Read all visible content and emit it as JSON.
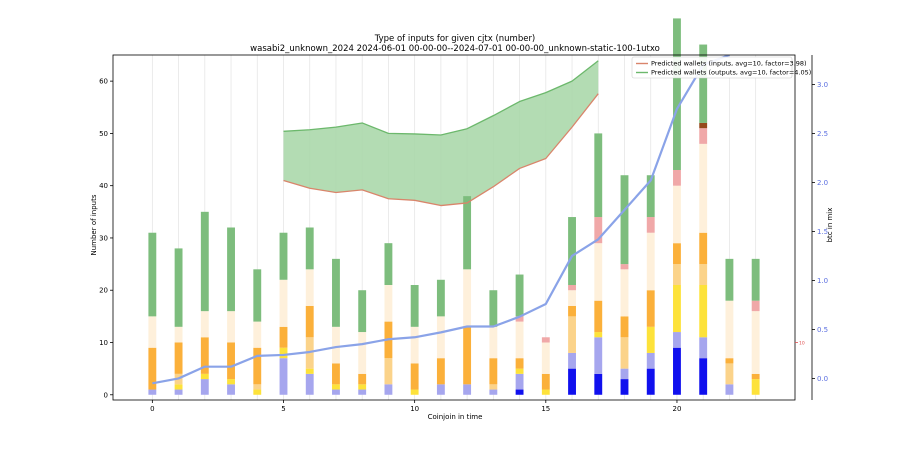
{
  "chart_data": {
    "type": "bar",
    "title": "Type of inputs for given cjtx (number)",
    "subtitle": "wasabi2_unknown_2024 2024-06-01 00-00-00--2024-07-01 00-00-00_unknown-static-100-1utxo",
    "xlabel": "Coinjoin in time",
    "ylabel": "Number of inputs",
    "y2label": "btc in mix",
    "xlim": [
      -1.5,
      24.5
    ],
    "ylim": [
      -1,
      65
    ],
    "y2lim": [
      -0.22,
      3.3
    ],
    "x_ticks": [
      0,
      5,
      10,
      15,
      20
    ],
    "y_ticks": [
      0,
      10,
      20,
      30,
      40,
      50,
      60
    ],
    "y2_ticks": [
      0.0,
      0.5,
      1.0,
      1.5,
      2.0,
      2.5,
      3.0
    ],
    "right_inner_tick": "10",
    "grid": "vertical",
    "categories": [
      0,
      1,
      2,
      3,
      4,
      5,
      6,
      7,
      8,
      9,
      10,
      11,
      12,
      13,
      14,
      15,
      16,
      17,
      18,
      19,
      20,
      21,
      22,
      23
    ],
    "segment_colors": [
      "#1010ee",
      "#a6a6ee",
      "#fde23a",
      "#fbd38a",
      "#fbb03a",
      "#fef0db",
      "#f0a8a8",
      "#944a1c",
      "#7dbd7d"
    ],
    "stacks": [
      [
        0,
        1,
        0,
        0,
        8,
        6,
        0,
        0,
        16
      ],
      [
        0,
        1,
        1,
        2,
        6,
        3,
        0,
        0,
        15
      ],
      [
        0,
        3,
        1,
        0,
        7,
        5,
        0,
        0,
        19
      ],
      [
        0,
        2,
        1,
        0,
        7,
        6,
        0,
        0,
        16
      ],
      [
        0,
        0,
        1,
        1,
        7,
        5,
        0,
        0,
        10
      ],
      [
        0,
        7,
        2,
        0,
        4,
        9,
        0,
        0,
        9
      ],
      [
        0,
        4,
        1,
        6,
        6,
        7,
        0,
        0,
        8
      ],
      [
        0,
        1,
        1,
        0,
        4,
        7,
        0,
        0,
        13
      ],
      [
        0,
        1,
        1,
        0,
        2,
        8,
        0,
        0,
        8
      ],
      [
        0,
        2,
        0,
        5,
        7,
        7,
        0,
        0,
        8
      ],
      [
        0,
        0,
        1,
        0,
        5,
        7,
        0,
        0,
        8
      ],
      [
        0,
        2,
        0,
        0,
        5,
        8,
        0,
        0,
        7
      ],
      [
        0,
        2,
        0,
        0,
        11,
        11,
        0,
        0,
        14
      ],
      [
        0,
        1,
        0,
        1,
        5,
        6,
        0,
        0,
        7
      ],
      [
        1,
        3,
        1,
        0,
        2,
        7,
        1,
        0,
        8
      ],
      [
        0,
        0,
        1,
        0,
        3,
        6,
        1,
        0,
        0
      ],
      [
        5,
        3,
        0,
        7,
        2,
        3,
        1,
        0,
        13
      ],
      [
        4,
        7,
        1,
        0,
        6,
        11,
        5,
        0,
        16
      ],
      [
        3,
        2,
        0,
        6,
        4,
        9,
        1,
        0,
        17
      ],
      [
        5,
        3,
        5,
        0,
        7,
        11,
        3,
        0,
        8
      ],
      [
        9,
        3,
        9,
        4,
        4,
        11,
        3,
        0,
        29
      ],
      [
        7,
        4,
        10,
        4,
        6,
        17,
        3,
        1,
        15
      ],
      [
        0,
        2,
        0,
        4,
        1,
        11,
        0,
        0,
        8
      ],
      [
        0,
        0,
        3,
        0,
        1,
        12,
        2,
        0,
        8
      ]
    ],
    "series": [
      {
        "name": "Predicted wallets (inputs, avg=10, factor=3.98)",
        "color": "#d9856b",
        "x": [
          5,
          6,
          7,
          8,
          9,
          10,
          11,
          12,
          13,
          14,
          15,
          16,
          17
        ],
        "values": [
          41,
          39.5,
          38.7,
          39.2,
          37.5,
          37.2,
          36.2,
          36.7,
          39.8,
          43.3,
          45.2,
          51.2,
          57.6
        ]
      },
      {
        "name": "Predicted wallets (outputs, avg=10, factor=4.05)",
        "color": "#6cb86c",
        "x": [
          5,
          6,
          7,
          8,
          9,
          10,
          11,
          12,
          13,
          14,
          15,
          16,
          17
        ],
        "values": [
          50.4,
          50.7,
          51.2,
          52,
          50,
          49.9,
          49.7,
          50.9,
          53.4,
          56.1,
          57.8,
          60,
          63.9
        ]
      },
      {
        "name": "",
        "axis": "right",
        "color": "#8aa3e8",
        "x": [
          0,
          1,
          2,
          3,
          4,
          5,
          6,
          7,
          8,
          9,
          10,
          11,
          12,
          13,
          14,
          15,
          16,
          17,
          18,
          19,
          20,
          21,
          22
        ],
        "values": [
          -0.05,
          0.0,
          0.12,
          0.12,
          0.23,
          0.24,
          0.27,
          0.32,
          0.35,
          0.4,
          0.42,
          0.47,
          0.53,
          0.53,
          0.63,
          0.76,
          1.25,
          1.42,
          1.72,
          2.02,
          2.75,
          3.2,
          3.3
        ]
      }
    ],
    "legend": "top-right",
    "colors": {
      "right_axis": "#5a6ee0",
      "right_inner_tick": "#e05050"
    }
  }
}
